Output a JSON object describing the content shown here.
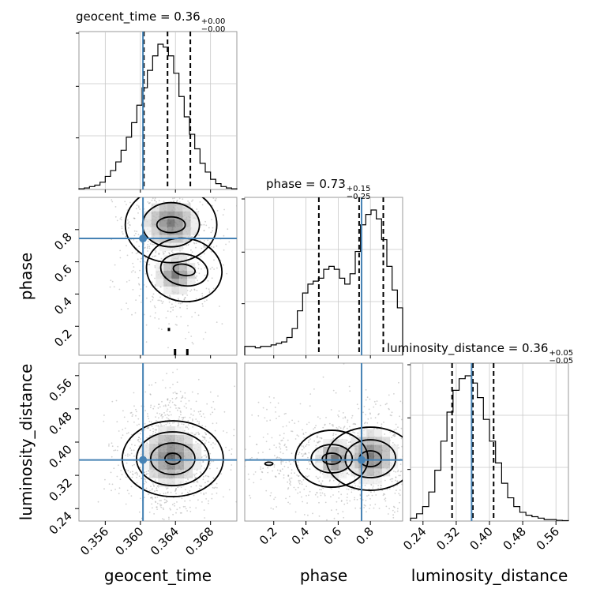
{
  "chart_data": {
    "type": "corner",
    "parameters": [
      "geocent_time",
      "phase",
      "luminosity_distance"
    ],
    "axis_labels": {
      "geocent_time": "geocent_time",
      "phase": "phase",
      "luminosity_distance": "luminosity_distance"
    },
    "ranges": {
      "geocent_time": [
        0.353,
        0.371
      ],
      "phase": [
        0.02,
        1.0
      ],
      "luminosity_distance": [
        0.21,
        0.59
      ]
    },
    "ticks": {
      "geocent_time": [
        0.356,
        0.36,
        0.364,
        0.368
      ],
      "phase": [
        0.2,
        0.4,
        0.6,
        0.8
      ],
      "luminosity_distance": [
        0.24,
        0.32,
        0.4,
        0.48,
        0.56
      ]
    },
    "tick_labels": {
      "geocent_time": [
        "0.356",
        "0.360",
        "0.364",
        "0.368"
      ],
      "phase": [
        "0.2",
        "0.4",
        "0.6",
        "0.8"
      ],
      "luminosity_distance": [
        "0.24",
        "0.32",
        "0.40",
        "0.48",
        "0.56"
      ]
    },
    "truths": {
      "geocent_time": 0.3603,
      "phase": 0.745,
      "luminosity_distance": 0.357
    },
    "titles": [
      {
        "param": "geocent_time",
        "median": "0.36",
        "plus": "+0.00",
        "minus": "−0.00"
      },
      {
        "param": "phase",
        "median": "0.73",
        "plus": "+0.15",
        "minus": "−0.25"
      },
      {
        "param": "luminosity_distance",
        "median": "0.36",
        "plus": "+0.05",
        "minus": "−0.05"
      }
    ],
    "quantiles": {
      "geocent_time": [
        0.3604,
        0.3631,
        0.3657
      ],
      "phase": [
        0.48,
        0.73,
        0.88
      ],
      "luminosity_distance": [
        0.31,
        0.36,
        0.41
      ]
    },
    "histograms": {
      "geocent_time": [
        0.5,
        1,
        2,
        3,
        5,
        9,
        13,
        19,
        27,
        36,
        46,
        58,
        70,
        82,
        92,
        100,
        98,
        92,
        80,
        64,
        50,
        38,
        28,
        18,
        12,
        7,
        4,
        2,
        1,
        0.5
      ],
      "phase": [
        6,
        6,
        5,
        6,
        6,
        7,
        8,
        9,
        12,
        18,
        30,
        42,
        48,
        50,
        52,
        58,
        60,
        58,
        52,
        48,
        55,
        70,
        88,
        95,
        98,
        92,
        78,
        60,
        44,
        32
      ],
      "luminosity_distance": [
        2,
        5,
        10,
        20,
        35,
        55,
        75,
        90,
        98,
        100,
        95,
        85,
        70,
        55,
        40,
        26,
        16,
        10,
        6,
        4,
        3,
        2,
        1,
        1,
        0.5,
        0.3
      ]
    },
    "truth_color": "#4682b4",
    "hist_color": "#000000",
    "grid": true
  }
}
